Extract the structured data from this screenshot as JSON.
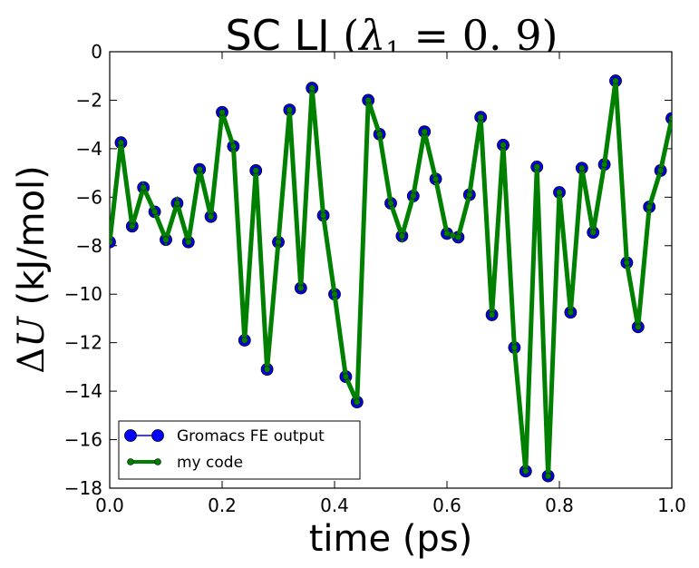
{
  "chart_data": {
    "type": "line",
    "title": {
      "prefix": "SC LJ ",
      "open": "(",
      "lambda": "λ",
      "subscript": "1",
      "eq": " = 0. 9",
      "close": ")"
    },
    "xlabel": "time (ps)",
    "ylabel": {
      "delta": "Δ",
      "var": "U",
      "unit": " (kJ/mol)"
    },
    "xlim": [
      0.0,
      1.0
    ],
    "ylim": [
      -18,
      0
    ],
    "xticks": [
      "0.0",
      "0.2",
      "0.4",
      "0.6",
      "0.8",
      "1.0"
    ],
    "yticks": [
      "0",
      "−2",
      "−4",
      "−6",
      "−8",
      "−10",
      "−12",
      "−14",
      "−16",
      "−18"
    ],
    "grid": false,
    "legend_position": "lower-left",
    "x": [
      0.0,
      0.02,
      0.04,
      0.06,
      0.08,
      0.1,
      0.12,
      0.14,
      0.16,
      0.18,
      0.2,
      0.22,
      0.24,
      0.26,
      0.28,
      0.3,
      0.32,
      0.34,
      0.36,
      0.38,
      0.4,
      0.42,
      0.44,
      0.46,
      0.48,
      0.5,
      0.52,
      0.54,
      0.56,
      0.58,
      0.6,
      0.62,
      0.64,
      0.66,
      0.68,
      0.7,
      0.72,
      0.74,
      0.76,
      0.78,
      0.8,
      0.82,
      0.84,
      0.86,
      0.88,
      0.9,
      0.92,
      0.94,
      0.96,
      0.98,
      1.0
    ],
    "series": [
      {
        "name": "Gromacs FE output",
        "color": "#0000ff",
        "style": "line-with-circle-markers",
        "values": [
          -7.85,
          -3.75,
          -7.2,
          -5.6,
          -6.6,
          -7.75,
          -6.25,
          -7.85,
          -4.85,
          -6.8,
          -2.5,
          -3.9,
          -11.9,
          -4.9,
          -13.1,
          -7.85,
          -2.4,
          -9.75,
          -1.5,
          -6.75,
          -10.0,
          -13.4,
          -14.45,
          -2.0,
          -3.4,
          -6.25,
          -7.6,
          -5.95,
          -3.3,
          -5.25,
          -7.5,
          -7.65,
          -5.9,
          -2.7,
          -10.85,
          -3.85,
          -12.2,
          -17.3,
          -4.75,
          -17.5,
          -5.8,
          -10.75,
          -4.8,
          -7.45,
          -4.65,
          -1.2,
          -8.7,
          -11.35,
          -6.4,
          -4.9,
          -2.75
        ]
      },
      {
        "name": "my code",
        "color": "#008000",
        "style": "thick-line-with-small-markers",
        "values": [
          -7.85,
          -3.75,
          -7.2,
          -5.6,
          -6.6,
          -7.75,
          -6.25,
          -7.85,
          -4.85,
          -6.8,
          -2.5,
          -3.9,
          -11.9,
          -4.9,
          -13.1,
          -7.85,
          -2.4,
          -9.75,
          -1.5,
          -6.75,
          -10.0,
          -13.4,
          -14.45,
          -2.0,
          -3.4,
          -6.25,
          -7.6,
          -5.95,
          -3.3,
          -5.25,
          -7.5,
          -7.65,
          -5.9,
          -2.7,
          -10.85,
          -3.85,
          -12.2,
          -17.3,
          -4.75,
          -17.5,
          -5.8,
          -10.75,
          -4.8,
          -7.45,
          -4.65,
          -1.2,
          -8.7,
          -11.35,
          -6.4,
          -4.9,
          -2.75
        ]
      }
    ]
  }
}
